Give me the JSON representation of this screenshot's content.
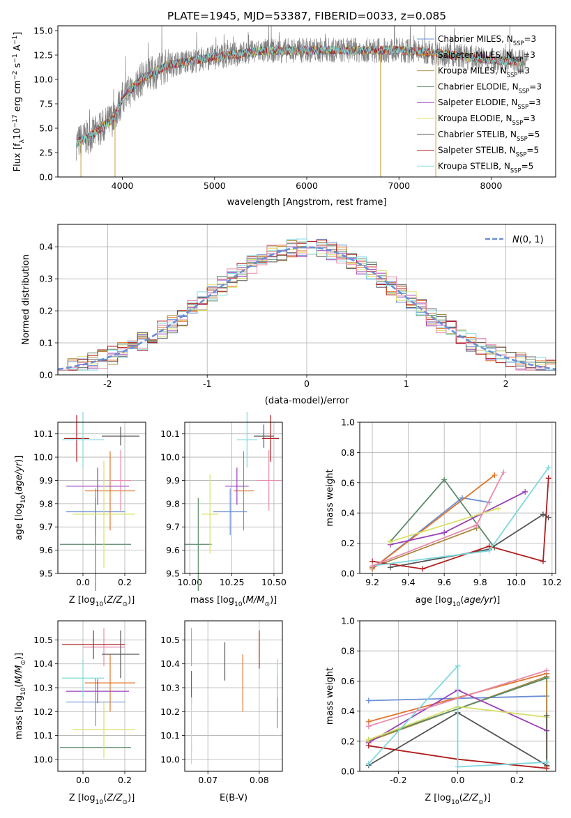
{
  "title": "PLATE=1945, MJD=53387, FIBERID=0033, z=0.085",
  "colors": [
    "#6a8fd6",
    "#e0762b",
    "#a7873d",
    "#5a8a6a",
    "#9a3fb8",
    "#d8e066",
    "#555555",
    "#b01e1e",
    "#7ed8dd"
  ],
  "chart_data": [
    {
      "id": "spectrum",
      "type": "line",
      "xlabel": "wavelength [Angstrom, rest frame]",
      "ylabel": "Flux [f_λ10^-17 erg cm^-2 s^-1 A^-1]",
      "xlim": [
        3300,
        8700
      ],
      "ylim": [
        0,
        15.5
      ],
      "xticks": [
        4000,
        5000,
        6000,
        7000,
        8000
      ],
      "yticks": [
        0.0,
        2.5,
        5.0,
        7.5,
        10.0,
        12.5,
        15.0
      ],
      "grid": false,
      "legend_position": "right",
      "legend": [
        {
          "model": "Chabrier MILES, N",
          "sub": "SSP",
          "n": "=3"
        },
        {
          "model": "Salpeter MILES, N",
          "sub": "SSP",
          "n": "=3"
        },
        {
          "model": "Kroupa MILES, N",
          "sub": "SSP",
          "n": "=3"
        },
        {
          "model": "Chabrier ELODIE, N",
          "sub": "SSP",
          "n": "=3"
        },
        {
          "model": "Salpeter ELODIE, N",
          "sub": "SSP",
          "n": "=3"
        },
        {
          "model": "Kroupa ELODIE, N",
          "sub": "SSP",
          "n": "=3"
        },
        {
          "model": "Chabrier STELIB, N",
          "sub": "SSP",
          "n": "=5"
        },
        {
          "model": "Salpeter STELIB, N",
          "sub": "SSP",
          "n": "=5"
        },
        {
          "model": "Kroupa STELIB, N",
          "sub": "SSP",
          "n": "=5"
        }
      ],
      "continuum": [
        [
          3500,
          3.5
        ],
        [
          3700,
          4.5
        ],
        [
          3900,
          6.0
        ],
        [
          4000,
          8.0
        ],
        [
          4200,
          10.0
        ],
        [
          4500,
          11.5
        ],
        [
          5000,
          12.3
        ],
        [
          5500,
          12.9
        ],
        [
          6000,
          13.0
        ],
        [
          6500,
          13.0
        ],
        [
          7000,
          13.0
        ],
        [
          7500,
          12.6
        ],
        [
          8000,
          12.0
        ],
        [
          8400,
          11.8
        ]
      ],
      "data_range": [
        3500,
        8400
      ],
      "model_range": [
        3500,
        8340
      ],
      "drops": [
        [
          6800,
          0
        ],
        [
          7400,
          0
        ],
        [
          3550,
          0
        ],
        [
          3920,
          0
        ]
      ]
    },
    {
      "id": "residuals",
      "type": "histogram",
      "xlabel": "(data-model)/error",
      "ylabel": "Normed distribution",
      "xlim": [
        -2.5,
        2.5
      ],
      "ylim": [
        0,
        0.47
      ],
      "xticks": [
        -2,
        -1,
        0,
        1,
        2
      ],
      "yticks": [
        0.0,
        0.1,
        0.2,
        0.3,
        0.4
      ],
      "grid": true,
      "legend_label": "N(0,1)",
      "legend_position": "top-right",
      "bins": [
        -2.5,
        2.5,
        50
      ]
    },
    {
      "id": "age-vs-Z",
      "type": "errorbar",
      "xlabel": "Z [log10(Z/Z⊙)]",
      "ylabel": "age [log10(age/yr)]",
      "xlim": [
        -0.12,
        0.3
      ],
      "ylim": [
        9.5,
        10.15
      ],
      "xticks": [
        0.0,
        0.2
      ],
      "yticks": [
        9.5,
        9.6,
        9.7,
        9.8,
        9.9,
        10.0,
        10.1
      ],
      "points": [
        {
          "x": 0.06,
          "y": 9.765,
          "xerr": 0.14,
          "yerr": 0.1
        },
        {
          "x": 0.13,
          "y": 9.855,
          "xerr": 0.12,
          "yerr": 0.17
        },
        {
          "x": 0.18,
          "y": 9.9,
          "xerr": 0.05,
          "yerr": 0.13
        },
        {
          "x": 0.06,
          "y": 9.625,
          "xerr": 0.17,
          "yerr": 0.2
        },
        {
          "x": 0.07,
          "y": 9.875,
          "xerr": 0.15,
          "yerr": 0.08
        },
        {
          "x": 0.1,
          "y": 9.755,
          "xerr": 0.15,
          "yerr": 0.23
        },
        {
          "x": 0.18,
          "y": 10.09,
          "xerr": 0.09,
          "yerr": 0.04
        },
        {
          "x": -0.03,
          "y": 10.08,
          "xerr": 0.06,
          "yerr": 0.1
        },
        {
          "x": 0.0,
          "y": 10.075,
          "xerr": 0.1,
          "yerr": 0.12
        }
      ]
    },
    {
      "id": "age-vs-mass",
      "type": "errorbar",
      "xlabel": "mass [log10(M/M⊙)]",
      "xlim": [
        9.97,
        10.55
      ],
      "ylim": [
        9.5,
        10.15
      ],
      "xticks": [
        10.0,
        10.25,
        10.5
      ],
      "yticks": [
        9.5,
        9.6,
        9.7,
        9.8,
        9.9,
        10.0,
        10.1
      ],
      "points": [
        {
          "x": 10.24,
          "y": 9.765,
          "xerr": 0.1,
          "yerr": 0.1
        },
        {
          "x": 10.32,
          "y": 9.855,
          "xerr": 0.06,
          "yerr": 0.17
        },
        {
          "x": 10.47,
          "y": 9.9,
          "xerr": 0.07,
          "yerr": 0.13
        },
        {
          "x": 10.05,
          "y": 9.625,
          "xerr": 0.08,
          "yerr": 0.2
        },
        {
          "x": 10.28,
          "y": 9.875,
          "xerr": 0.07,
          "yerr": 0.08
        },
        {
          "x": 10.12,
          "y": 9.755,
          "xerr": 0.05,
          "yerr": 0.17
        },
        {
          "x": 10.44,
          "y": 10.09,
          "xerr": 0.06,
          "yerr": 0.05
        },
        {
          "x": 10.48,
          "y": 10.08,
          "xerr": 0.05,
          "yerr": 0.1
        },
        {
          "x": 10.34,
          "y": 10.075,
          "xerr": 0.06,
          "yerr": 0.12
        }
      ]
    },
    {
      "id": "weight-vs-age",
      "type": "line",
      "xlabel": "age [log10(age/yr)]",
      "ylabel": "mass weight",
      "xlim": [
        9.13,
        10.22
      ],
      "ylim": [
        0,
        1
      ],
      "xticks": [
        9.2,
        9.4,
        9.6,
        9.8,
        10.0,
        10.2
      ],
      "yticks": [
        0.0,
        0.2,
        0.4,
        0.6,
        0.8,
        1.0
      ],
      "grid": true,
      "series": [
        {
          "points": [
            [
              9.2,
              0.03
            ],
            [
              9.7,
              0.5
            ],
            [
              9.85,
              0.47
            ]
          ]
        },
        {
          "points": [
            [
              9.2,
              0.03
            ],
            [
              9.88,
              0.65
            ]
          ]
        },
        {
          "points": [
            [
              9.2,
              0.04
            ],
            [
              9.78,
              0.3
            ]
          ]
        },
        {
          "points": [
            [
              9.3,
              0.21
            ],
            [
              9.6,
              0.62
            ],
            [
              9.88,
              0.17
            ]
          ]
        },
        {
          "points": [
            [
              9.3,
              0.19
            ],
            [
              9.6,
              0.27
            ],
            [
              10.05,
              0.54
            ]
          ]
        },
        {
          "points": [
            [
              9.3,
              0.21
            ],
            [
              9.9,
              0.43
            ]
          ]
        },
        {
          "points": [
            [
              9.3,
              0.04
            ],
            [
              9.85,
              0.16
            ],
            [
              10.15,
              0.39
            ],
            [
              10.18,
              0.37
            ]
          ]
        },
        {
          "points": [
            [
              9.2,
              0.08
            ],
            [
              9.48,
              0.03
            ],
            [
              9.85,
              0.18
            ],
            [
              10.15,
              0.08
            ],
            [
              10.18,
              0.63
            ]
          ]
        },
        {
          "points": [
            [
              9.2,
              0.05
            ],
            [
              9.85,
              0.15
            ],
            [
              10.18,
              0.7
            ]
          ]
        }
      ],
      "extra": {
        "points": [
          [
            9.2,
            0.05
          ],
          [
            9.78,
            0.32
          ],
          [
            9.93,
            0.67
          ]
        ],
        "color": "#e88aab"
      }
    },
    {
      "id": "mass-vs-Z",
      "type": "errorbar",
      "xlabel": "Z [log10(Z/Z⊙)]",
      "ylabel": "mass [log10(M/M⊙)]",
      "xlim": [
        -0.12,
        0.3
      ],
      "ylim": [
        9.95,
        10.58
      ],
      "xticks": [
        0.0,
        0.2
      ],
      "yticks": [
        10.0,
        10.1,
        10.2,
        10.3,
        10.4,
        10.5
      ],
      "points": [
        {
          "x": 0.06,
          "y": 10.24,
          "xerr": 0.14,
          "yerr": 0.1
        },
        {
          "x": 0.13,
          "y": 10.32,
          "xerr": 0.12,
          "yerr": 0.12
        },
        {
          "x": 0.1,
          "y": 10.47,
          "xerr": 0.1,
          "yerr": 0.08
        },
        {
          "x": 0.06,
          "y": 10.05,
          "xerr": 0.17,
          "yerr": 0.0
        },
        {
          "x": 0.07,
          "y": 10.285,
          "xerr": 0.15,
          "yerr": 0.05
        },
        {
          "x": 0.1,
          "y": 10.125,
          "xerr": 0.15,
          "yerr": 0.12
        },
        {
          "x": 0.18,
          "y": 10.44,
          "xerr": 0.09,
          "yerr": 0.1
        },
        {
          "x": 0.05,
          "y": 10.48,
          "xerr": 0.15,
          "yerr": 0.06
        },
        {
          "x": 0.0,
          "y": 10.34,
          "xerr": 0.1,
          "yerr": 0.08
        }
      ]
    },
    {
      "id": "mass-vs-EBV",
      "type": "errorbar",
      "xlabel": "E(B-V)",
      "xlim": [
        0.0655,
        0.0845
      ],
      "ylim": [
        9.95,
        10.58
      ],
      "xticks": [
        0.07,
        0.08
      ],
      "yticks": [
        10.0,
        10.1,
        10.2,
        10.3,
        10.4,
        10.5
      ],
      "points": [
        {
          "x": 0.0835,
          "y": 10.24,
          "xerr": 0,
          "yerr": 0.11
        },
        {
          "x": 0.0768,
          "y": 10.32,
          "xerr": 0,
          "yerr": 0.12
        },
        {
          "x": 0.0668,
          "y": 10.47,
          "xerr": 0,
          "yerr": 0.08
        },
        {
          "x": 0.0668,
          "y": 10.05,
          "xerr": 0,
          "yerr": 0.02
        },
        {
          "x": 0.0668,
          "y": 10.3,
          "xerr": 0,
          "yerr": 0.07
        },
        {
          "x": 0.0668,
          "y": 10.12,
          "xerr": 0,
          "yerr": 0.14
        },
        {
          "x": 0.0733,
          "y": 10.41,
          "xerr": 0,
          "yerr": 0.08
        },
        {
          "x": 0.08,
          "y": 10.46,
          "xerr": 0,
          "yerr": 0.08
        },
        {
          "x": 0.0835,
          "y": 10.34,
          "xerr": 0,
          "yerr": 0.08
        }
      ]
    },
    {
      "id": "weight-vs-Z",
      "type": "line",
      "xlabel": "Z [log10(Z/Z⊙)]",
      "ylabel": "mass weight",
      "xlim": [
        -0.33,
        0.33
      ],
      "ylim": [
        0,
        1
      ],
      "xticks": [
        -0.2,
        0.0,
        0.2
      ],
      "yticks": [
        0.0,
        0.2,
        0.4,
        0.6,
        0.8,
        1.0
      ],
      "grid": true,
      "series": [
        {
          "points": [
            [
              -0.3,
              0.47
            ],
            [
              0.3,
              0.5
            ]
          ]
        },
        {
          "points": [
            [
              -0.3,
              0.33
            ],
            [
              0.3,
              0.65
            ],
            [
              0.3,
              0.03
            ]
          ]
        },
        {
          "points": [
            [
              -0.3,
              0.2
            ],
            [
              0.3,
              0.63
            ],
            [
              0.3,
              0.03
            ]
          ]
        },
        {
          "points": [
            [
              -0.3,
              0.21
            ],
            [
              0.3,
              0.62
            ]
          ]
        },
        {
          "points": [
            [
              -0.3,
              0.19
            ],
            [
              0.0,
              0.54
            ],
            [
              0.3,
              0.27
            ]
          ]
        },
        {
          "points": [
            [
              -0.3,
              0.21
            ],
            [
              0.0,
              0.43
            ],
            [
              0.3,
              0.36
            ]
          ]
        },
        {
          "points": [
            [
              -0.3,
              0.04
            ],
            [
              0.0,
              0.39
            ],
            [
              0.3,
              0.04
            ],
            [
              0.3,
              0.37
            ]
          ]
        },
        {
          "points": [
            [
              -0.3,
              0.17
            ],
            [
              0.0,
              0.08
            ],
            [
              0.3,
              0.02
            ]
          ]
        },
        {
          "points": [
            [
              -0.3,
              0.05
            ],
            [
              0.0,
              0.7
            ],
            [
              0.0,
              0.03
            ],
            [
              0.3,
              0.06
            ]
          ]
        }
      ],
      "extra": {
        "points": [
          [
            -0.3,
            0.3
          ],
          [
            0.3,
            0.67
          ]
        ],
        "color": "#e88aab"
      }
    }
  ]
}
